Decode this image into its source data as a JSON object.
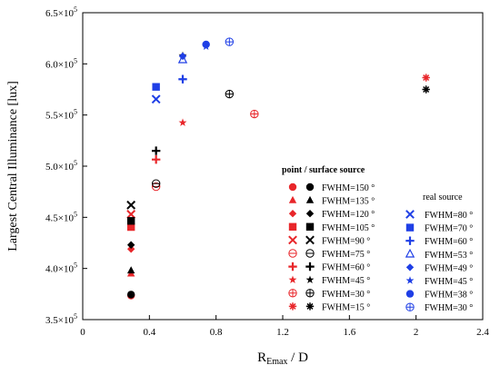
{
  "chart_data": {
    "type": "scatter",
    "xlabel_main": "R",
    "xlabel_sub": "Emax",
    "xlabel_rest": " / D",
    "ylabel": "Largest Central Illuminance [lux]",
    "xlim": [
      0,
      2.4
    ],
    "ylim": [
      350000,
      650000
    ],
    "x_ticks": [
      {
        "value": 0,
        "label": "0"
      },
      {
        "value": 0.4,
        "label": "0.4"
      },
      {
        "value": 0.8,
        "label": "0.8"
      },
      {
        "value": 1.2,
        "label": "1.2"
      },
      {
        "value": 1.6,
        "label": "1.6"
      },
      {
        "value": 2.0,
        "label": "2"
      },
      {
        "value": 2.4,
        "label": "2.4"
      }
    ],
    "y_ticks": [
      {
        "value": 350000,
        "mantissa": "3.5",
        "exponent": "5"
      },
      {
        "value": 400000,
        "mantissa": "4.0",
        "exponent": "5"
      },
      {
        "value": 450000,
        "mantissa": "4.5",
        "exponent": "5"
      },
      {
        "value": 500000,
        "mantissa": "5.0",
        "exponent": "5"
      },
      {
        "value": 550000,
        "mantissa": "5.5",
        "exponent": "5"
      },
      {
        "value": 600000,
        "mantissa": "6.0",
        "exponent": "5"
      },
      {
        "value": 650000,
        "mantissa": "6.5",
        "exponent": "5"
      }
    ],
    "tick_prefix": "",
    "tick_times": "×10",
    "legend_left_title": "point / surface source",
    "legend_right_title": "real source",
    "series": [
      {
        "name": "FWHM=150 °",
        "group": "left",
        "marker": "circle",
        "color": "#e8262a",
        "points": [
          [
            0.29,
            373500
          ]
        ]
      },
      {
        "name": "FWHM=135 °",
        "group": "left",
        "marker": "triangle",
        "color": "#e8262a",
        "points": [
          [
            0.29,
            395000
          ]
        ]
      },
      {
        "name": "FWHM=120 °",
        "group": "left",
        "marker": "diamond",
        "color": "#e8262a",
        "points": [
          [
            0.29,
            419000
          ]
        ]
      },
      {
        "name": "FWHM=105 °",
        "group": "left",
        "marker": "square",
        "color": "#e8262a",
        "points": [
          [
            0.29,
            440500
          ]
        ]
      },
      {
        "name": "FWHM=90 °",
        "group": "left",
        "marker": "x",
        "color": "#e8262a",
        "points": [
          [
            0.29,
            453000
          ]
        ]
      },
      {
        "name": "FWHM=75 °",
        "group": "left",
        "marker": "circle-minus",
        "color": "#e8262a",
        "points": [
          [
            0.44,
            480000
          ]
        ]
      },
      {
        "name": "FWHM=60 °",
        "group": "left",
        "marker": "plus",
        "color": "#e8262a",
        "points": [
          [
            0.44,
            506500
          ]
        ]
      },
      {
        "name": "FWHM=45 °",
        "group": "left",
        "marker": "star",
        "color": "#e8262a",
        "points": [
          [
            0.6,
            542500
          ]
        ]
      },
      {
        "name": "FWHM=30 °",
        "group": "left",
        "marker": "circle-plus",
        "color": "#e8262a",
        "points": [
          [
            1.03,
            551000
          ]
        ]
      },
      {
        "name": "FWHM=15 °",
        "group": "left",
        "marker": "asterisk",
        "color": "#e8262a",
        "points": [
          [
            2.06,
            586500
          ]
        ]
      },
      {
        "name": "FWHM=150 °",
        "group": "left-black",
        "marker": "circle",
        "color": "#000000",
        "points": [
          [
            0.29,
            374500
          ]
        ]
      },
      {
        "name": "FWHM=135 °",
        "group": "left-black",
        "marker": "triangle",
        "color": "#000000",
        "points": [
          [
            0.29,
            398000
          ]
        ]
      },
      {
        "name": "FWHM=120 °",
        "group": "left-black",
        "marker": "diamond",
        "color": "#000000",
        "points": [
          [
            0.29,
            423000
          ]
        ]
      },
      {
        "name": "FWHM=105 °",
        "group": "left-black",
        "marker": "square",
        "color": "#000000",
        "points": [
          [
            0.29,
            446500
          ]
        ]
      },
      {
        "name": "FWHM=90 °",
        "group": "left-black",
        "marker": "x",
        "color": "#000000",
        "points": [
          [
            0.29,
            462000
          ]
        ]
      },
      {
        "name": "FWHM=75 °",
        "group": "left-black",
        "marker": "circle-minus",
        "color": "#000000",
        "points": [
          [
            0.44,
            483000
          ]
        ]
      },
      {
        "name": "FWHM=60 °",
        "group": "left-black",
        "marker": "plus",
        "color": "#000000",
        "points": [
          [
            0.44,
            515000
          ]
        ]
      },
      {
        "name": "FWHM=45 °",
        "group": "left-black",
        "marker": "star",
        "color": "#000000",
        "points": [
          [
            0.6,
            608000
          ]
        ]
      },
      {
        "name": "FWHM=30 °",
        "group": "left-black",
        "marker": "circle-plus",
        "color": "#000000",
        "points": [
          [
            0.88,
            570500
          ]
        ]
      },
      {
        "name": "FWHM=15 °",
        "group": "left-black",
        "marker": "asterisk",
        "color": "#000000",
        "points": [
          [
            2.06,
            575000
          ]
        ]
      },
      {
        "name": "FWHM=80 °",
        "group": "right",
        "marker": "x",
        "color": "#1f3fe6",
        "points": [
          [
            0.44,
            565500
          ]
        ]
      },
      {
        "name": "FWHM=70 °",
        "group": "right",
        "marker": "square",
        "color": "#1f3fe6",
        "points": [
          [
            0.44,
            577500
          ]
        ]
      },
      {
        "name": "FWHM=60 °",
        "group": "right",
        "marker": "plus",
        "color": "#1f3fe6",
        "points": [
          [
            0.6,
            585000
          ]
        ]
      },
      {
        "name": "FWHM=53 °",
        "group": "right",
        "marker": "triangle-open",
        "color": "#1f3fe6",
        "points": [
          [
            0.6,
            604000
          ]
        ]
      },
      {
        "name": "FWHM=49 °",
        "group": "right",
        "marker": "diamond",
        "color": "#1f3fe6",
        "points": [
          [
            0.6,
            607500
          ]
        ]
      },
      {
        "name": "FWHM=45 °",
        "group": "right",
        "marker": "star",
        "color": "#1f3fe6",
        "points": [
          [
            0.74,
            617000
          ]
        ]
      },
      {
        "name": "FWHM=38 °",
        "group": "right",
        "marker": "circle",
        "color": "#1f3fe6",
        "points": [
          [
            0.74,
            619000
          ]
        ]
      },
      {
        "name": "FWHM=30 °",
        "group": "right",
        "marker": "circle-plus",
        "color": "#1f3fe6",
        "points": [
          [
            0.88,
            621500
          ]
        ]
      }
    ]
  }
}
